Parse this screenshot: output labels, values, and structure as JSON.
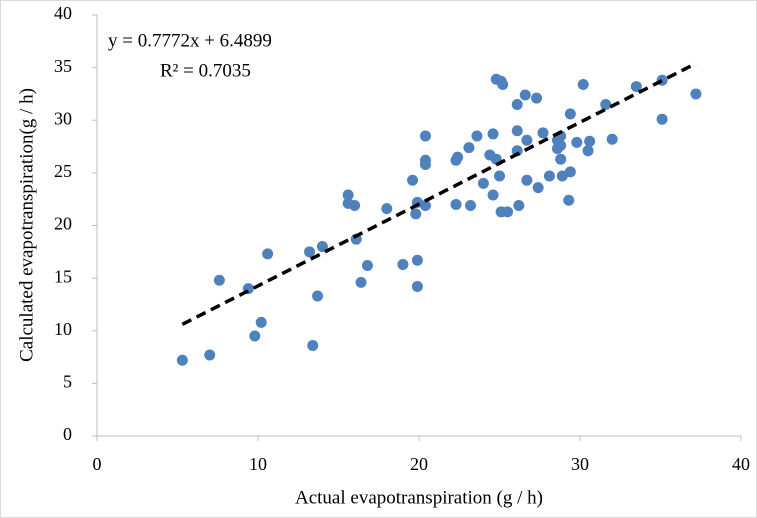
{
  "chart_data": {
    "type": "scatter",
    "x_label": "Actual evapotranspiration (g / h)",
    "y_label": "Calculated evapotranspiration(g / h)",
    "annotations": [
      "y = 0.7772x + 6.4899",
      "R² = 0.7035"
    ],
    "xlim": [
      0,
      40
    ],
    "ylim": [
      0,
      40
    ],
    "xticks": [
      0,
      10,
      20,
      30,
      40
    ],
    "yticks": [
      0,
      5,
      10,
      15,
      20,
      25,
      30,
      35,
      40
    ],
    "grid": false,
    "color": "#4f81bd",
    "trendline": {
      "slope": 0.7772,
      "intercept": 6.4899,
      "xlim": [
        5.3,
        37.2
      ],
      "color": "#000000"
    },
    "x": [
      5.3,
      7.0,
      7.6,
      9.4,
      10.2,
      9.8,
      10.6,
      13.2,
      13.4,
      13.7,
      14.0,
      15.6,
      15.6,
      16.0,
      16.1,
      16.4,
      16.8,
      18.0,
      19.0,
      19.6,
      19.8,
      19.9,
      19.9,
      19.9,
      20.4,
      20.4,
      20.4,
      20.4,
      22.3,
      22.3,
      22.4,
      23.2,
      23.1,
      23.6,
      24.0,
      24.4,
      24.6,
      24.6,
      24.8,
      24.8,
      25.0,
      25.1,
      25.2,
      25.1,
      25.5,
      26.1,
      26.1,
      26.1,
      26.2,
      26.6,
      26.7,
      26.7,
      27.3,
      27.4,
      27.7,
      28.1,
      28.6,
      28.6,
      28.8,
      28.8,
      28.8,
      28.9,
      29.3,
      29.4,
      29.4,
      29.8,
      30.2,
      30.5,
      30.6,
      31.6,
      32.0,
      33.5,
      35.1,
      35.1,
      37.2
    ],
    "y": [
      7.2,
      7.7,
      14.8,
      14.0,
      10.8,
      9.5,
      17.3,
      17.5,
      8.6,
      13.3,
      18.0,
      22.9,
      22.1,
      21.9,
      18.7,
      14.6,
      16.2,
      21.6,
      16.3,
      24.3,
      21.1,
      22.2,
      16.7,
      14.2,
      21.9,
      28.5,
      26.2,
      25.8,
      26.2,
      22.0,
      26.5,
      21.9,
      27.4,
      28.5,
      24.0,
      26.7,
      22.9,
      28.7,
      26.3,
      33.9,
      24.7,
      33.7,
      33.4,
      21.3,
      21.3,
      31.5,
      29.0,
      27.1,
      21.9,
      32.4,
      28.1,
      24.3,
      32.1,
      23.6,
      28.8,
      24.7,
      28.1,
      27.3,
      28.5,
      26.3,
      27.6,
      24.7,
      22.4,
      30.6,
      25.1,
      27.9,
      33.4,
      27.1,
      28.0,
      31.5,
      28.2,
      33.2,
      33.8,
      30.1,
      32.5
    ]
  }
}
